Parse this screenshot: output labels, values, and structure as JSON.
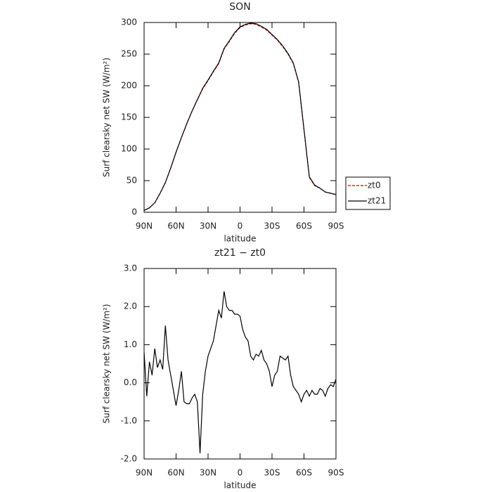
{
  "chart_data": [
    {
      "type": "line",
      "title": "SON",
      "xlabel": "latitude",
      "ylabel": "Surf clearsky net SW (W/m²)",
      "x": [
        90,
        85,
        80,
        75,
        70,
        65,
        60,
        55,
        50,
        45,
        40,
        35,
        30,
        25,
        20,
        15,
        10,
        5,
        0,
        -5,
        -10,
        -15,
        -20,
        -25,
        -30,
        -35,
        -40,
        -45,
        -50,
        -55,
        -60,
        -65,
        -70,
        -75,
        -80,
        -85,
        -90
      ],
      "series": [
        {
          "name": "zt0",
          "color": "#cc0000",
          "dash": true,
          "values": [
            3,
            7,
            15,
            30,
            47,
            70,
            95,
            118,
            140,
            160,
            178,
            195,
            208,
            222,
            235,
            258,
            270,
            283,
            292,
            296,
            298,
            297,
            293,
            288,
            280,
            272,
            262,
            250,
            235,
            205,
            130,
            55,
            42,
            38,
            32,
            30,
            28
          ]
        },
        {
          "name": "zt21",
          "color": "#000000",
          "dash": false,
          "values": [
            3,
            7,
            15,
            30,
            47,
            70,
            95,
            118,
            140,
            160,
            178,
            196,
            209,
            223,
            236,
            259,
            271,
            284,
            293,
            297,
            299,
            298,
            294,
            289,
            281,
            273,
            263,
            251,
            236,
            206,
            131,
            56,
            43,
            38,
            32,
            30,
            28
          ]
        }
      ],
      "xlim": [
        90,
        -90
      ],
      "xticks": [
        {
          "value": 90,
          "label": "90N"
        },
        {
          "value": 60,
          "label": "60N"
        },
        {
          "value": 30,
          "label": "30N"
        },
        0,
        {
          "value": -30,
          "label": "30S"
        },
        {
          "value": -60,
          "label": "60S"
        },
        {
          "value": -90,
          "label": "90S"
        }
      ],
      "ylim": [
        0,
        300
      ],
      "yticks": [
        0,
        50,
        100,
        150,
        200,
        250,
        300
      ],
      "legend": "right"
    },
    {
      "type": "line",
      "title": "zt21 − zt0",
      "xlabel": "latitude",
      "ylabel": "Surf clearsky net SW (W/m²)",
      "x": [
        90,
        87.5,
        85,
        82.5,
        80,
        77.5,
        75,
        72.5,
        70,
        67.5,
        65,
        62.5,
        60,
        57.5,
        55,
        52.5,
        50,
        47.5,
        45,
        42.5,
        40,
        37.5,
        35,
        32.5,
        30,
        27.5,
        25,
        22.5,
        20,
        17.5,
        15,
        12.5,
        10,
        7.5,
        5,
        2.5,
        0,
        -2.5,
        -5,
        -7.5,
        -10,
        -12.5,
        -15,
        -17.5,
        -20,
        -22.5,
        -25,
        -27.5,
        -30,
        -32.5,
        -35,
        -37.5,
        -40,
        -42.5,
        -45,
        -47.5,
        -50,
        -52.5,
        -55,
        -57.5,
        -60,
        -62.5,
        -65,
        -67.5,
        -70,
        -72.5,
        -75,
        -77.5,
        -80,
        -82.5,
        -85,
        -87.5,
        -90
      ],
      "series": [
        {
          "color": "#000000",
          "dash": false,
          "values": [
            0.8,
            -0.35,
            0.55,
            0.2,
            0.9,
            0.4,
            0.6,
            0.35,
            1.5,
            0.6,
            0.2,
            -0.2,
            -0.6,
            -0.2,
            0.3,
            -0.5,
            -0.55,
            -0.55,
            -0.4,
            -0.3,
            -0.5,
            -1.85,
            -0.3,
            0.3,
            0.7,
            0.9,
            1.1,
            1.5,
            1.9,
            1.7,
            2.4,
            2.0,
            1.9,
            1.9,
            1.8,
            1.8,
            1.75,
            1.4,
            1.2,
            1.1,
            0.7,
            0.6,
            0.75,
            0.7,
            0.85,
            0.6,
            0.5,
            0.3,
            -0.1,
            0.2,
            0.3,
            0.7,
            0.65,
            0.6,
            0.7,
            0.2,
            -0.1,
            -0.2,
            -0.3,
            -0.5,
            -0.3,
            -0.2,
            -0.35,
            -0.2,
            -0.3,
            -0.3,
            -0.15,
            -0.2,
            -0.35,
            -0.15,
            -0.05,
            -0.1,
            0.1
          ]
        }
      ],
      "xlim": [
        90,
        -90
      ],
      "xticks": [
        {
          "value": 90,
          "label": "90N"
        },
        {
          "value": 60,
          "label": "60N"
        },
        {
          "value": 30,
          "label": "30N"
        },
        0,
        {
          "value": -30,
          "label": "30S"
        },
        {
          "value": -60,
          "label": "60S"
        },
        {
          "value": -90,
          "label": "90S"
        }
      ],
      "ylim": [
        -2,
        3
      ],
      "yticks": [
        {
          "value": -2,
          "label": "-2.0"
        },
        {
          "value": -1,
          "label": "-1.0"
        },
        {
          "value": 0,
          "label": "0.0"
        },
        {
          "value": 1,
          "label": "1.0"
        },
        {
          "value": 2,
          "label": "2.0"
        },
        {
          "value": 3,
          "label": "3.0"
        }
      ]
    }
  ]
}
